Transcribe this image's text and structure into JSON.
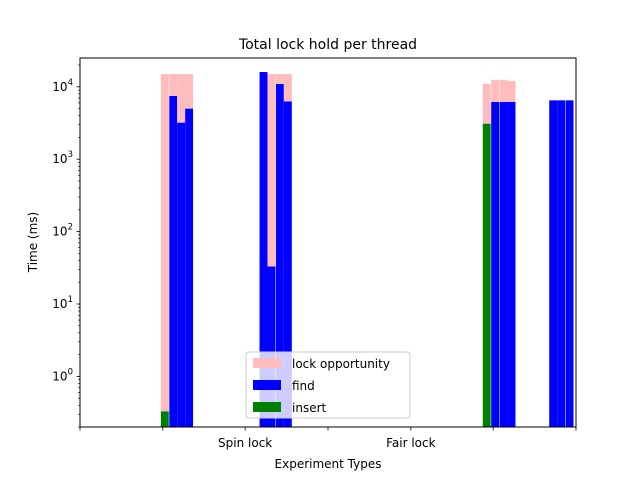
{
  "chart_data": {
    "type": "bar",
    "stacked": true,
    "title": "Total lock hold per thread",
    "xlabel": "Experiment Types",
    "ylabel": "Time (ms)",
    "yscale": "log",
    "ylim": [
      0.2,
      25000
    ],
    "yticks": [
      {
        "value": 1,
        "label": "10^0"
      },
      {
        "value": 10,
        "label": "10^1"
      },
      {
        "value": 100,
        "label": "10^2"
      },
      {
        "value": 1000,
        "label": "10^3"
      },
      {
        "value": 10000,
        "label": "10^4"
      }
    ],
    "xlim": [
      0,
      1
    ],
    "xticks": [
      {
        "pos": 0.0,
        "label": ""
      },
      {
        "pos": 0.167,
        "label": ""
      },
      {
        "pos": 0.333,
        "label": "Spin lock"
      },
      {
        "pos": 0.5,
        "label": ""
      },
      {
        "pos": 0.667,
        "label": "Fair lock"
      },
      {
        "pos": 0.833,
        "label": ""
      },
      {
        "pos": 1.0,
        "label": ""
      }
    ],
    "colors": {
      "lock opportunity": "#ffbcbc",
      "find": "#0000ff",
      "insert": "#008000"
    },
    "legend": {
      "placement": "lower center",
      "entries": [
        "lock opportunity",
        "find",
        "insert"
      ]
    },
    "bars": [
      {
        "x": 0.163,
        "width": 0.016,
        "series": "insert",
        "bottom": 0.2,
        "top": 0.33
      },
      {
        "x": 0.163,
        "width": 0.016,
        "series": "lock opportunity",
        "bottom": 0.33,
        "top": 15000
      },
      {
        "x": 0.18,
        "width": 0.016,
        "series": "find",
        "bottom": 0.2,
        "top": 7500
      },
      {
        "x": 0.18,
        "width": 0.016,
        "series": "lock opportunity",
        "bottom": 7500,
        "top": 15000
      },
      {
        "x": 0.196,
        "width": 0.016,
        "series": "find",
        "bottom": 0.2,
        "top": 3200
      },
      {
        "x": 0.196,
        "width": 0.016,
        "series": "lock opportunity",
        "bottom": 3200,
        "top": 15000
      },
      {
        "x": 0.212,
        "width": 0.016,
        "series": "find",
        "bottom": 0.2,
        "top": 5000
      },
      {
        "x": 0.212,
        "width": 0.016,
        "series": "lock opportunity",
        "bottom": 5000,
        "top": 15000
      },
      {
        "x": 0.362,
        "width": 0.016,
        "series": "find",
        "bottom": 0.2,
        "top": 16000
      },
      {
        "x": 0.378,
        "width": 0.016,
        "series": "find",
        "bottom": 0.2,
        "top": 33
      },
      {
        "x": 0.378,
        "width": 0.016,
        "series": "lock opportunity",
        "bottom": 33,
        "top": 15000
      },
      {
        "x": 0.395,
        "width": 0.016,
        "series": "find",
        "bottom": 0.2,
        "top": 11000
      },
      {
        "x": 0.395,
        "width": 0.016,
        "series": "lock opportunity",
        "bottom": 11000,
        "top": 15000
      },
      {
        "x": 0.411,
        "width": 0.016,
        "series": "find",
        "bottom": 0.2,
        "top": 6300
      },
      {
        "x": 0.411,
        "width": 0.016,
        "series": "lock opportunity",
        "bottom": 6300,
        "top": 15000
      },
      {
        "x": 0.812,
        "width": 0.016,
        "series": "insert",
        "bottom": 0.2,
        "top": 3100
      },
      {
        "x": 0.812,
        "width": 0.016,
        "series": "lock opportunity",
        "bottom": 3100,
        "top": 11000
      },
      {
        "x": 0.829,
        "width": 0.016,
        "series": "find",
        "bottom": 0.2,
        "top": 6200
      },
      {
        "x": 0.829,
        "width": 0.016,
        "series": "lock opportunity",
        "bottom": 6200,
        "top": 12500
      },
      {
        "x": 0.846,
        "width": 0.016,
        "series": "find",
        "bottom": 0.2,
        "top": 6200
      },
      {
        "x": 0.846,
        "width": 0.016,
        "series": "lock opportunity",
        "bottom": 6200,
        "top": 12500
      },
      {
        "x": 0.862,
        "width": 0.016,
        "series": "find",
        "bottom": 0.2,
        "top": 6200
      },
      {
        "x": 0.862,
        "width": 0.016,
        "series": "lock opportunity",
        "bottom": 6200,
        "top": 12000
      },
      {
        "x": 0.946,
        "width": 0.016,
        "series": "find",
        "bottom": 0.2,
        "top": 6500
      },
      {
        "x": 0.962,
        "width": 0.016,
        "series": "find",
        "bottom": 0.2,
        "top": 6500
      },
      {
        "x": 0.979,
        "width": 0.016,
        "series": "find",
        "bottom": 0.2,
        "top": 6500
      }
    ]
  }
}
